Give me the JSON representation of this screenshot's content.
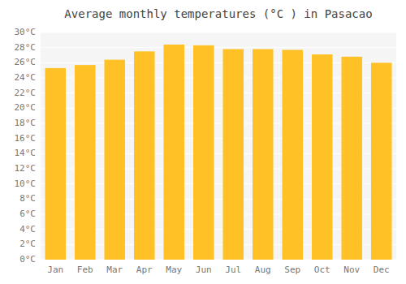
{
  "chart_data": {
    "type": "bar",
    "title": "Average monthly temperatures (°C ) in Pasacao",
    "categories": [
      "Jan",
      "Feb",
      "Mar",
      "Apr",
      "May",
      "Jun",
      "Jul",
      "Aug",
      "Sep",
      "Oct",
      "Nov",
      "Dec"
    ],
    "values": [
      25.3,
      25.7,
      26.4,
      27.5,
      28.4,
      28.3,
      27.8,
      27.8,
      27.7,
      27.1,
      26.8,
      26.0
    ],
    "color": "#FFC125",
    "ylim": [
      0,
      30
    ],
    "yticks": [
      {
        "value": 0,
        "label": "0°C"
      },
      {
        "value": 2,
        "label": "2°C"
      },
      {
        "value": 4,
        "label": "4°C"
      },
      {
        "value": 6,
        "label": "6°C"
      },
      {
        "value": 8,
        "label": "8°C"
      },
      {
        "value": 10,
        "label": "10°C"
      },
      {
        "value": 12,
        "label": "12°C"
      },
      {
        "value": 14,
        "label": "14°C"
      },
      {
        "value": 16,
        "label": "16°C"
      },
      {
        "value": 18,
        "label": "18°C"
      },
      {
        "value": 20,
        "label": "20°C"
      },
      {
        "value": 22,
        "label": "22°C"
      },
      {
        "value": 24,
        "label": "24°C"
      },
      {
        "value": 26,
        "label": "26°C"
      },
      {
        "value": 28,
        "label": "28°C"
      },
      {
        "value": 30,
        "label": "30°C"
      }
    ],
    "grid": true
  }
}
